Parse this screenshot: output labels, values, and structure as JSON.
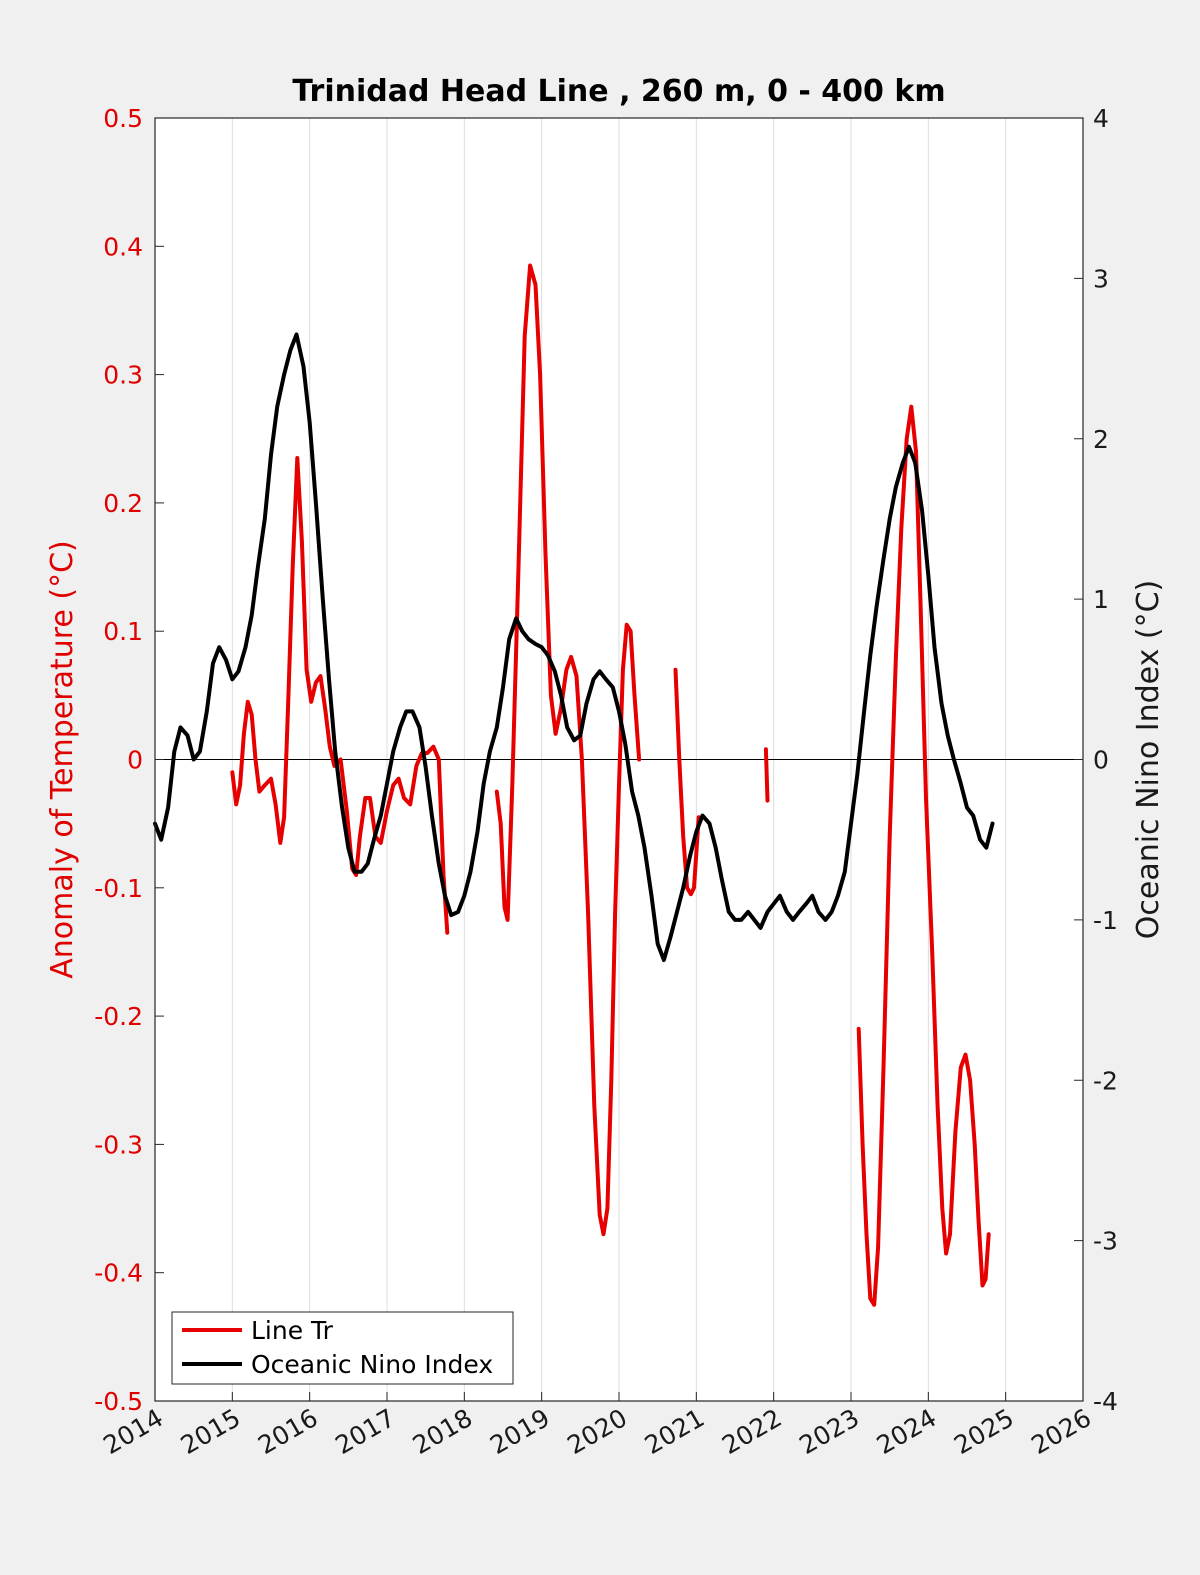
{
  "chart_data": {
    "type": "line",
    "title": "Trinidad Head Line , 260 m, 0 - 400 km",
    "xlabel": "",
    "ylabel_left": "Anomaly of Temperature (°C)",
    "ylabel_right": "Oceanic Nino Index (°C)",
    "xlim": [
      2014,
      2026
    ],
    "ylim_left": [
      -0.5,
      0.5
    ],
    "ylim_right": [
      -4,
      4
    ],
    "x_ticks": [
      "2014",
      "2015",
      "2016",
      "2017",
      "2018",
      "2019",
      "2020",
      "2021",
      "2022",
      "2023",
      "2024",
      "2025",
      "2026"
    ],
    "y_ticks_left": [
      "-0.5",
      "-0.4",
      "-0.3",
      "-0.2",
      "-0.1",
      "0",
      "0.1",
      "0.2",
      "0.3",
      "0.4",
      "0.5"
    ],
    "y_ticks_right": [
      "-4",
      "-3",
      "-2",
      "-1",
      "0",
      "1",
      "2",
      "3",
      "4"
    ],
    "grid": "vertical",
    "zero_line": true,
    "legend_position": "bottom-left",
    "colors": {
      "temperature": "#e60000",
      "oni": "#000000"
    },
    "series": [
      {
        "name": "Line Tr",
        "axis": "left",
        "color": "#e60000",
        "segments": [
          [
            [
              2015.0,
              -0.01
            ],
            [
              2015.05,
              -0.035
            ],
            [
              2015.1,
              -0.02
            ],
            [
              2015.15,
              0.02
            ],
            [
              2015.2,
              0.045
            ],
            [
              2015.25,
              0.035
            ],
            [
              2015.3,
              0.0
            ],
            [
              2015.35,
              -0.025
            ],
            [
              2015.42,
              -0.02
            ],
            [
              2015.5,
              -0.015
            ],
            [
              2015.56,
              -0.035
            ],
            [
              2015.62,
              -0.065
            ],
            [
              2015.67,
              -0.045
            ],
            [
              2015.72,
              0.04
            ],
            [
              2015.78,
              0.15
            ],
            [
              2015.84,
              0.235
            ],
            [
              2015.9,
              0.17
            ],
            [
              2015.96,
              0.07
            ],
            [
              2016.02,
              0.045
            ],
            [
              2016.08,
              0.06
            ],
            [
              2016.14,
              0.065
            ],
            [
              2016.2,
              0.04
            ],
            [
              2016.26,
              0.01
            ],
            [
              2016.32,
              -0.005
            ],
            [
              2016.4,
              0.0
            ],
            [
              2016.48,
              -0.04
            ],
            [
              2016.55,
              -0.085
            ],
            [
              2016.6,
              -0.09
            ],
            [
              2016.65,
              -0.06
            ],
            [
              2016.72,
              -0.03
            ],
            [
              2016.78,
              -0.03
            ],
            [
              2016.85,
              -0.06
            ],
            [
              2016.92,
              -0.065
            ],
            [
              2017.0,
              -0.04
            ],
            [
              2017.08,
              -0.02
            ],
            [
              2017.15,
              -0.015
            ],
            [
              2017.22,
              -0.03
            ],
            [
              2017.3,
              -0.035
            ],
            [
              2017.38,
              -0.005
            ],
            [
              2017.45,
              0.005
            ],
            [
              2017.52,
              0.005
            ],
            [
              2017.6,
              0.01
            ],
            [
              2017.67,
              0.0
            ],
            [
              2017.73,
              -0.09
            ],
            [
              2017.78,
              -0.135
            ]
          ],
          [
            [
              2018.42,
              -0.025
            ],
            [
              2018.47,
              -0.05
            ],
            [
              2018.52,
              -0.115
            ],
            [
              2018.56,
              -0.125
            ],
            [
              2018.62,
              -0.02
            ],
            [
              2018.7,
              0.15
            ],
            [
              2018.78,
              0.33
            ],
            [
              2018.85,
              0.385
            ],
            [
              2018.92,
              0.37
            ],
            [
              2018.98,
              0.3
            ],
            [
              2019.05,
              0.16
            ],
            [
              2019.12,
              0.05
            ],
            [
              2019.18,
              0.02
            ],
            [
              2019.25,
              0.04
            ],
            [
              2019.32,
              0.07
            ],
            [
              2019.38,
              0.08
            ],
            [
              2019.45,
              0.065
            ],
            [
              2019.52,
              0.0
            ],
            [
              2019.6,
              -0.12
            ],
            [
              2019.68,
              -0.27
            ],
            [
              2019.75,
              -0.355
            ],
            [
              2019.8,
              -0.37
            ],
            [
              2019.85,
              -0.35
            ],
            [
              2019.9,
              -0.25
            ],
            [
              2019.95,
              -0.12
            ],
            [
              2020.0,
              -0.02
            ],
            [
              2020.05,
              0.07
            ],
            [
              2020.1,
              0.105
            ],
            [
              2020.15,
              0.1
            ],
            [
              2020.2,
              0.05
            ],
            [
              2020.26,
              0.0
            ]
          ],
          [
            [
              2020.73,
              0.07
            ],
            [
              2020.78,
              0.0
            ],
            [
              2020.83,
              -0.06
            ],
            [
              2020.88,
              -0.1
            ],
            [
              2020.93,
              -0.105
            ],
            [
              2020.97,
              -0.1
            ],
            [
              2021.03,
              -0.045
            ]
          ],
          [
            [
              2021.9,
              0.008
            ],
            [
              2021.92,
              -0.032
            ]
          ],
          [
            [
              2023.1,
              -0.21
            ],
            [
              2023.15,
              -0.3
            ],
            [
              2023.2,
              -0.37
            ],
            [
              2023.25,
              -0.42
            ],
            [
              2023.3,
              -0.425
            ],
            [
              2023.35,
              -0.38
            ],
            [
              2023.42,
              -0.24
            ],
            [
              2023.5,
              -0.06
            ],
            [
              2023.58,
              0.08
            ],
            [
              2023.65,
              0.18
            ],
            [
              2023.72,
              0.25
            ],
            [
              2023.78,
              0.275
            ],
            [
              2023.84,
              0.24
            ],
            [
              2023.9,
              0.12
            ],
            [
              2023.97,
              -0.03
            ],
            [
              2024.05,
              -0.15
            ],
            [
              2024.12,
              -0.27
            ],
            [
              2024.18,
              -0.35
            ],
            [
              2024.23,
              -0.385
            ],
            [
              2024.28,
              -0.37
            ],
            [
              2024.35,
              -0.29
            ],
            [
              2024.42,
              -0.24
            ],
            [
              2024.48,
              -0.23
            ],
            [
              2024.54,
              -0.25
            ],
            [
              2024.6,
              -0.3
            ],
            [
              2024.65,
              -0.36
            ],
            [
              2024.7,
              -0.41
            ],
            [
              2024.74,
              -0.405
            ],
            [
              2024.78,
              -0.37
            ]
          ]
        ]
      },
      {
        "name": "Oceanic Nino Index",
        "axis": "right",
        "color": "#000000",
        "segments": [
          [
            [
              2014.0,
              -0.4
            ],
            [
              2014.08,
              -0.5
            ],
            [
              2014.17,
              -0.3
            ],
            [
              2014.25,
              0.05
            ],
            [
              2014.33,
              0.2
            ],
            [
              2014.42,
              0.15
            ],
            [
              2014.5,
              0.0
            ],
            [
              2014.58,
              0.05
            ],
            [
              2014.67,
              0.3
            ],
            [
              2014.75,
              0.6
            ],
            [
              2014.83,
              0.7
            ],
            [
              2014.92,
              0.62
            ],
            [
              2015.0,
              0.5
            ],
            [
              2015.08,
              0.55
            ],
            [
              2015.17,
              0.7
            ],
            [
              2015.25,
              0.9
            ],
            [
              2015.33,
              1.2
            ],
            [
              2015.42,
              1.5
            ],
            [
              2015.5,
              1.9
            ],
            [
              2015.58,
              2.2
            ],
            [
              2015.67,
              2.4
            ],
            [
              2015.75,
              2.55
            ],
            [
              2015.83,
              2.65
            ],
            [
              2015.92,
              2.45
            ],
            [
              2016.0,
              2.1
            ],
            [
              2016.08,
              1.6
            ],
            [
              2016.17,
              1.0
            ],
            [
              2016.25,
              0.5
            ],
            [
              2016.33,
              0.05
            ],
            [
              2016.42,
              -0.3
            ],
            [
              2016.5,
              -0.55
            ],
            [
              2016.58,
              -0.7
            ],
            [
              2016.67,
              -0.7
            ],
            [
              2016.75,
              -0.65
            ],
            [
              2016.83,
              -0.5
            ],
            [
              2016.92,
              -0.35
            ],
            [
              2017.0,
              -0.15
            ],
            [
              2017.08,
              0.05
            ],
            [
              2017.17,
              0.2
            ],
            [
              2017.25,
              0.3
            ],
            [
              2017.33,
              0.3
            ],
            [
              2017.42,
              0.2
            ],
            [
              2017.5,
              -0.05
            ],
            [
              2017.58,
              -0.35
            ],
            [
              2017.67,
              -0.65
            ],
            [
              2017.75,
              -0.85
            ],
            [
              2017.83,
              -0.97
            ],
            [
              2017.92,
              -0.95
            ],
            [
              2018.0,
              -0.85
            ],
            [
              2018.08,
              -0.7
            ],
            [
              2018.17,
              -0.45
            ],
            [
              2018.25,
              -0.15
            ],
            [
              2018.33,
              0.05
            ],
            [
              2018.42,
              0.2
            ],
            [
              2018.5,
              0.45
            ],
            [
              2018.58,
              0.75
            ],
            [
              2018.67,
              0.88
            ],
            [
              2018.75,
              0.8
            ],
            [
              2018.83,
              0.75
            ],
            [
              2018.92,
              0.72
            ],
            [
              2019.0,
              0.7
            ],
            [
              2019.08,
              0.65
            ],
            [
              2019.17,
              0.55
            ],
            [
              2019.25,
              0.4
            ],
            [
              2019.33,
              0.2
            ],
            [
              2019.42,
              0.12
            ],
            [
              2019.5,
              0.15
            ],
            [
              2019.58,
              0.35
            ],
            [
              2019.67,
              0.5
            ],
            [
              2019.75,
              0.55
            ],
            [
              2019.83,
              0.5
            ],
            [
              2019.92,
              0.45
            ],
            [
              2020.0,
              0.3
            ],
            [
              2020.08,
              0.1
            ],
            [
              2020.17,
              -0.2
            ],
            [
              2020.25,
              -0.35
            ],
            [
              2020.33,
              -0.55
            ],
            [
              2020.42,
              -0.85
            ],
            [
              2020.5,
              -1.15
            ],
            [
              2020.58,
              -1.25
            ],
            [
              2020.67,
              -1.1
            ],
            [
              2020.75,
              -0.95
            ],
            [
              2020.83,
              -0.8
            ],
            [
              2020.92,
              -0.6
            ],
            [
              2021.0,
              -0.45
            ],
            [
              2021.08,
              -0.35
            ],
            [
              2021.17,
              -0.4
            ],
            [
              2021.25,
              -0.55
            ],
            [
              2021.33,
              -0.75
            ],
            [
              2021.42,
              -0.95
            ],
            [
              2021.5,
              -1.0
            ],
            [
              2021.58,
              -1.0
            ],
            [
              2021.67,
              -0.95
            ],
            [
              2021.75,
              -1.0
            ],
            [
              2021.83,
              -1.05
            ],
            [
              2021.92,
              -0.95
            ],
            [
              2022.0,
              -0.9
            ],
            [
              2022.08,
              -0.85
            ],
            [
              2022.17,
              -0.95
            ],
            [
              2022.25,
              -1.0
            ],
            [
              2022.33,
              -0.95
            ],
            [
              2022.42,
              -0.9
            ],
            [
              2022.5,
              -0.85
            ],
            [
              2022.58,
              -0.95
            ],
            [
              2022.67,
              -1.0
            ],
            [
              2022.75,
              -0.95
            ],
            [
              2022.83,
              -0.85
            ],
            [
              2022.92,
              -0.7
            ],
            [
              2023.0,
              -0.4
            ],
            [
              2023.08,
              -0.1
            ],
            [
              2023.17,
              0.3
            ],
            [
              2023.25,
              0.65
            ],
            [
              2023.33,
              0.95
            ],
            [
              2023.42,
              1.25
            ],
            [
              2023.5,
              1.5
            ],
            [
              2023.58,
              1.7
            ],
            [
              2023.67,
              1.85
            ],
            [
              2023.75,
              1.95
            ],
            [
              2023.83,
              1.85
            ],
            [
              2023.92,
              1.55
            ],
            [
              2024.0,
              1.15
            ],
            [
              2024.08,
              0.7
            ],
            [
              2024.17,
              0.35
            ],
            [
              2024.25,
              0.15
            ],
            [
              2024.33,
              0.0
            ],
            [
              2024.42,
              -0.15
            ],
            [
              2024.5,
              -0.3
            ],
            [
              2024.58,
              -0.35
            ],
            [
              2024.67,
              -0.5
            ],
            [
              2024.75,
              -0.55
            ],
            [
              2024.83,
              -0.4
            ]
          ]
        ]
      }
    ]
  }
}
